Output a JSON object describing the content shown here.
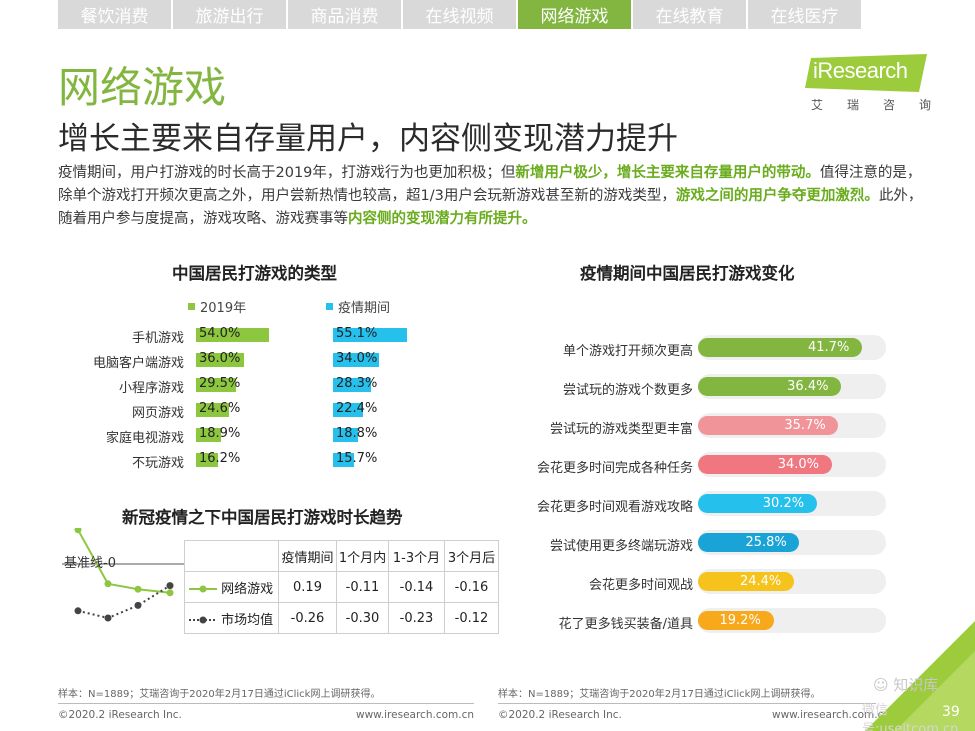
{
  "tabs": [
    {
      "label": "餐饮消费",
      "active": false
    },
    {
      "label": "旅游出行",
      "active": false
    },
    {
      "label": "商品消费",
      "active": false
    },
    {
      "label": "在线视频",
      "active": false
    },
    {
      "label": "网络游戏",
      "active": true
    },
    {
      "label": "在线教育",
      "active": false
    },
    {
      "label": "在线医疗",
      "active": false
    }
  ],
  "logo": {
    "text": "iResearch",
    "sub": [
      "艾",
      "瑞",
      "咨",
      "询"
    ]
  },
  "title": "网络游戏",
  "subtitle": "增长主要来自存量用户，内容侧变现潜力提升",
  "intro": [
    {
      "t": "疫情期间，用户打游戏的时长高于2019年，打游戏行为也更加积极；但",
      "b": false
    },
    {
      "t": "新增用户极少，增长主要来自存量用户的带动。",
      "b": true
    },
    {
      "t": "值得注意的是，除单个游戏打开频次更高之外，用户尝新热情也较高，超1/3用户会玩新游戏甚至新的游戏类型，",
      "b": false
    },
    {
      "t": "游戏之间的用户争夺更加激烈。",
      "b": true
    },
    {
      "t": "此外，随着用户参与度提高，游戏攻略、游戏赛事等",
      "b": false
    },
    {
      "t": "内容侧的变现潜力有所提升。",
      "b": true
    }
  ],
  "colors": {
    "green": "#8dc63f",
    "blue": "#25c0ec",
    "accent": "#82b641"
  },
  "chart_data": [
    {
      "type": "bar",
      "title": "中国居民打游戏的类型",
      "categories": [
        "手机游戏",
        "电脑客户端游戏",
        "小程序游戏",
        "网页游戏",
        "家庭电视游戏",
        "不玩游戏"
      ],
      "series": [
        {
          "name": "2019年",
          "values": [
            54.0,
            36.0,
            29.5,
            24.6,
            18.9,
            16.2
          ],
          "labels": [
            "54.0%",
            "36.0%",
            "29.5%",
            "24.6%",
            "18.9%",
            "16.2%"
          ]
        },
        {
          "name": "疫情期间",
          "values": [
            55.1,
            34.0,
            28.3,
            22.4,
            18.8,
            15.7
          ],
          "labels": [
            "55.1%",
            "34.0%",
            "28.3%",
            "22.4%",
            "18.8%",
            "15.7%"
          ]
        }
      ]
    },
    {
      "type": "bar",
      "title": "疫情期间中国居民打游戏变化",
      "categories": [
        "单个游戏打开频次更高",
        "尝试玩的游戏个数更多",
        "尝试玩的游戏类型更丰富",
        "会花更多时间完成各种任务",
        "会花更多时间观看游戏攻略",
        "尝试使用更多终端玩游戏",
        "会花更多时间观战",
        "花了更多钱买装备/道具"
      ],
      "values": [
        41.7,
        36.4,
        35.7,
        34.0,
        30.2,
        25.8,
        24.4,
        19.2
      ],
      "labels": [
        "41.7%",
        "36.4%",
        "35.7%",
        "34.0%",
        "30.2%",
        "25.8%",
        "24.4%",
        "19.2%"
      ],
      "colors": [
        "#82b641",
        "#82b641",
        "#f0949a",
        "#f0777f",
        "#25c0ec",
        "#1aa3d6",
        "#f6c21c",
        "#f7a81b"
      ]
    },
    {
      "type": "line",
      "title": "新冠疫情之下中国居民打游戏时长趋势",
      "baseline_label": "基准线-0",
      "x": [
        "疫情期间",
        "1个月内",
        "1-3个月",
        "3个月后"
      ],
      "series": [
        {
          "name": "网络游戏",
          "values": [
            0.19,
            -0.11,
            -0.14,
            -0.16
          ],
          "labels": [
            "0.19",
            "-0.11",
            "-0.14",
            "-0.16"
          ]
        },
        {
          "name": "市场均值",
          "values": [
            -0.26,
            -0.3,
            -0.23,
            -0.12
          ],
          "labels": [
            "-0.26",
            "-0.30",
            "-0.23",
            "-0.12"
          ]
        }
      ]
    }
  ],
  "footer": {
    "note_left": "样本：N=1889；艾瑞咨询于2020年2月17日通过iClick网上调研获得。",
    "note_right": "样本：N=1889；艾瑞咨询于2020年2月17日通过iClick网上调研获得。",
    "copyright_left": "©2020.2 iResearch Inc.",
    "url_left": "www.iresearch.com.cn",
    "copyright_right": "©2020.2 iResearch Inc.",
    "url_right": "www.iresearch.com.cn",
    "watermark": "知识库",
    "watermark2": "微信号:useitcom.cn",
    "page": "39"
  }
}
